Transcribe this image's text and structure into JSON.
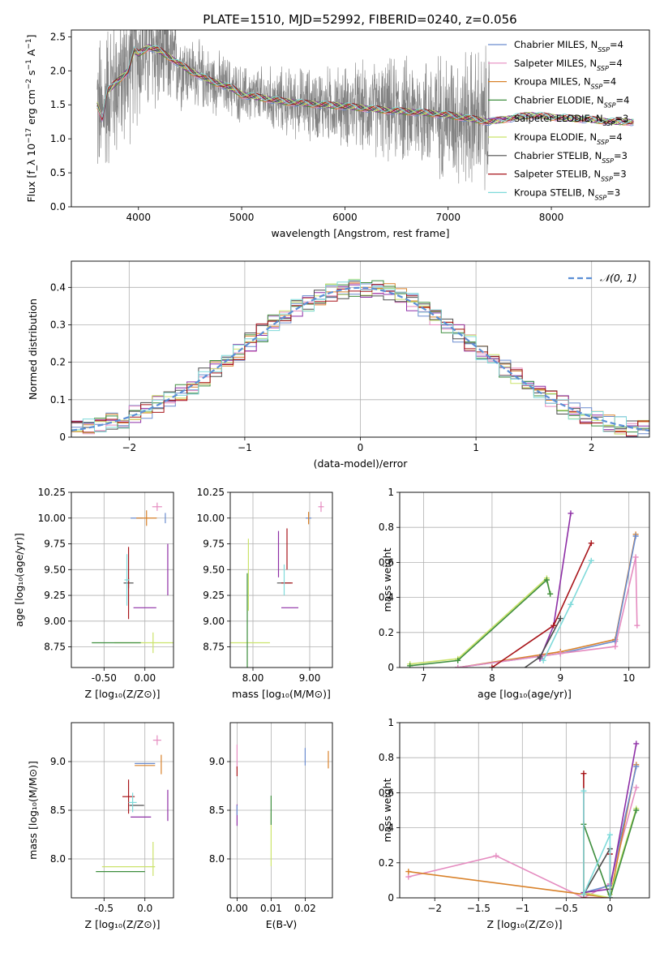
{
  "figure": {
    "title": "PLATE=1510, MJD=52992, FIBERID=0240, z=0.056"
  },
  "models": [
    {
      "name": "Chabrier MILES",
      "nssp": "4",
      "color": "#6a8ccf"
    },
    {
      "name": "Salpeter MILES",
      "nssp": "4",
      "color": "#e58cc0"
    },
    {
      "name": "Kroupa MILES",
      "nssp": "4",
      "color": "#d9822b"
    },
    {
      "name": "Chabrier ELODIE",
      "nssp": "4",
      "color": "#3e8e3e"
    },
    {
      "name": "Salpeter ELODIE",
      "nssp": "3",
      "color": "#8e2fa6"
    },
    {
      "name": "Kroupa ELODIE",
      "nssp": "4",
      "color": "#cbe36a"
    },
    {
      "name": "Chabrier STELIB",
      "nssp": "3",
      "color": "#4d4d4d"
    },
    {
      "name": "Salpeter STELIB",
      "nssp": "3",
      "color": "#a8151a"
    },
    {
      "name": "Kroupa STELIB",
      "nssp": "3",
      "color": "#7fdada"
    }
  ],
  "chart_data": [
    {
      "id": "spectrum",
      "type": "line",
      "xlabel": "wavelength [Angstrom, rest frame]",
      "ylabel": "Flux [f_λ 10^-17 erg cm^-2 s^-1 A^-1]",
      "xlim": [
        3350,
        8950
      ],
      "ylim": [
        0,
        2.6
      ],
      "xticks": [
        4000,
        5000,
        6000,
        7000,
        8000
      ],
      "yticks": [
        0.0,
        0.5,
        1.0,
        1.5,
        2.0,
        2.5
      ],
      "legend": "top-right",
      "data_color": "#808080",
      "model_continuum": {
        "x": [
          3600,
          3650,
          3700,
          3800,
          3900,
          3960,
          4000,
          4100,
          4200,
          4300,
          4400,
          4500,
          4700,
          4900,
          5000,
          5200,
          5400,
          5600,
          5800,
          6000,
          6200,
          6400,
          6600,
          6800,
          7000,
          7200,
          7400,
          7600,
          7800,
          8000,
          8200,
          8400,
          8600
        ],
        "y": [
          1.5,
          1.3,
          1.7,
          1.85,
          2.0,
          2.3,
          2.25,
          2.35,
          2.3,
          2.2,
          2.1,
          2.0,
          1.85,
          1.75,
          1.65,
          1.6,
          1.55,
          1.52,
          1.5,
          1.48,
          1.45,
          1.42,
          1.4,
          1.38,
          1.35,
          1.3,
          1.25,
          1.3,
          1.35,
          1.32,
          1.3,
          1.28,
          1.25
        ]
      },
      "data_noise_envelope": {
        "x": [
          3600,
          3900,
          4200,
          4500,
          5000,
          5500,
          6000,
          6500,
          7000,
          7400
        ],
        "amplitude": [
          1.4,
          1.3,
          1.2,
          0.6,
          0.5,
          0.6,
          0.7,
          0.9,
          1.1,
          1.3
        ]
      }
    },
    {
      "id": "residuals",
      "type": "histogram",
      "xlabel": "(data-model)/error",
      "ylabel": "Normed distribution",
      "xlim": [
        -2.5,
        2.5
      ],
      "ylim": [
        0,
        0.47
      ],
      "xticks": [
        -2,
        -1,
        0,
        1,
        2
      ],
      "yticks": [
        0.0,
        0.1,
        0.2,
        0.3,
        0.4
      ],
      "legend": "top-right",
      "reference_label": "𝒩(0, 1)",
      "reference_color": "#5b8fd6",
      "bin_edges_start": -2.5,
      "bin_width": 0.1
    },
    {
      "id": "age_vs_Z",
      "type": "errorbar",
      "xlabel": "Z [log10(Z/Z⊙)]",
      "ylabel": "age  [log10(age/yr)]",
      "xlim": [
        -0.9,
        0.35
      ],
      "ylim": [
        8.55,
        10.25
      ],
      "xticks": [
        -0.5,
        0.0
      ],
      "yticks": [
        8.75,
        9.0,
        9.25,
        9.5,
        9.75,
        10.0,
        10.25
      ],
      "points": [
        {
          "m": 5,
          "x": 0.1,
          "y": 8.79,
          "ex": 0.95,
          "ey": 0.2
        },
        {
          "m": 3,
          "x": -0.35,
          "y": 8.79,
          "ex": 0.6,
          "ey": 0.0
        },
        {
          "m": 4,
          "x": 0.0,
          "y": 9.13,
          "ex": 0.28,
          "ey": 0.0
        },
        {
          "m": 4,
          "x": 0.28,
          "y": 9.5,
          "ex": 0.0,
          "ey": 0.5
        },
        {
          "m": 6,
          "x": -0.2,
          "y": 9.37,
          "ex": 0.12,
          "ey": 0.1
        },
        {
          "m": 7,
          "x": -0.2,
          "y": 9.37,
          "ex": 0.0,
          "ey": 0.7
        },
        {
          "m": 8,
          "x": -0.22,
          "y": 9.4,
          "ex": 0.06,
          "ey": 0.5
        },
        {
          "m": 0,
          "x": -0.1,
          "y": 10.0,
          "ex": 0.15,
          "ey": 0.0
        },
        {
          "m": 2,
          "x": 0.02,
          "y": 10.0,
          "ex": 0.25,
          "ey": 0.15
        },
        {
          "m": 1,
          "x": 0.15,
          "y": 10.11,
          "ex": 0.12,
          "ey": 0.08
        },
        {
          "m": 0,
          "x": 0.25,
          "y": 10.0,
          "ex": 0.0,
          "ey": 0.1
        }
      ]
    },
    {
      "id": "age_vs_mass",
      "type": "errorbar",
      "xlabel": "mass [log10(M/M⊙)]",
      "ylabel": "",
      "xlim": [
        7.6,
        9.4
      ],
      "ylim": [
        8.55,
        10.25
      ],
      "xticks": [
        8,
        9
      ],
      "yticks": [
        8.75,
        9.0,
        9.25,
        9.5,
        9.75,
        10.0,
        10.25
      ],
      "points": [
        {
          "m": 5,
          "x": 7.9,
          "y": 8.79,
          "ex": 0.8,
          "ey": 0.0
        },
        {
          "m": 3,
          "x": 7.9,
          "y": 8.79,
          "ex": 0.0,
          "ey": 1.35
        },
        {
          "m": 5,
          "x": 7.92,
          "y": 9.45,
          "ex": 0.0,
          "ey": 0.7
        },
        {
          "m": 4,
          "x": 8.65,
          "y": 9.13,
          "ex": 0.3,
          "ey": 0.0
        },
        {
          "m": 4,
          "x": 8.45,
          "y": 9.65,
          "ex": 0.0,
          "ey": 0.45
        },
        {
          "m": 6,
          "x": 8.55,
          "y": 9.37,
          "ex": 0.25,
          "ey": 0.0
        },
        {
          "m": 7,
          "x": 8.6,
          "y": 9.37,
          "ex": 0.2,
          "ey": 0.0
        },
        {
          "m": 7,
          "x": 8.6,
          "y": 9.7,
          "ex": 0.0,
          "ey": 0.4
        },
        {
          "m": 8,
          "x": 8.55,
          "y": 9.4,
          "ex": 0.0,
          "ey": 0.3
        },
        {
          "m": 0,
          "x": 8.98,
          "y": 10.0,
          "ex": 0.1,
          "ey": 0.0
        },
        {
          "m": 2,
          "x": 8.98,
          "y": 10.0,
          "ex": 0.0,
          "ey": 0.12
        },
        {
          "m": 1,
          "x": 9.2,
          "y": 10.11,
          "ex": 0.1,
          "ey": 0.1
        }
      ]
    },
    {
      "id": "weight_vs_age",
      "type": "line",
      "xlabel": "age  [log10(age/yr)]",
      "ylabel": "mass weight",
      "xlim": [
        6.65,
        10.3
      ],
      "ylim": [
        0,
        1.0
      ],
      "xticks": [
        7,
        8,
        9,
        10
      ],
      "yticks": [
        0.0,
        0.2,
        0.4,
        0.6,
        0.8,
        1.0
      ],
      "series": [
        {
          "m": 5,
          "x": [
            6.8,
            7.5,
            8.8,
            8.85
          ],
          "y": [
            0.02,
            0.05,
            0.51,
            0.42
          ]
        },
        {
          "m": 3,
          "x": [
            6.8,
            7.5,
            8.8,
            8.85
          ],
          "y": [
            0.01,
            0.04,
            0.5,
            0.42
          ]
        },
        {
          "m": 2,
          "x": [
            7.5,
            9.0,
            9.8,
            10.1
          ],
          "y": [
            0.0,
            0.09,
            0.16,
            0.76
          ]
        },
        {
          "m": 0,
          "x": [
            7.5,
            9.0,
            9.8,
            10.1
          ],
          "y": [
            0.0,
            0.08,
            0.15,
            0.75
          ]
        },
        {
          "m": 1,
          "x": [
            7.5,
            9.0,
            9.8,
            10.1,
            10.12
          ],
          "y": [
            0.0,
            0.08,
            0.12,
            0.63,
            0.24
          ]
        },
        {
          "m": 4,
          "x": [
            8.7,
            8.9,
            9.15
          ],
          "y": [
            0.05,
            0.24,
            0.88
          ]
        },
        {
          "m": 6,
          "x": [
            8.3,
            8.7,
            9.0
          ],
          "y": [
            -0.05,
            0.06,
            0.28
          ]
        },
        {
          "m": 7,
          "x": [
            8.0,
            8.9,
            9.45
          ],
          "y": [
            0.0,
            0.24,
            0.71
          ]
        },
        {
          "m": 8,
          "x": [
            8.75,
            9.15,
            9.45
          ],
          "y": [
            0.04,
            0.36,
            0.61
          ]
        }
      ]
    },
    {
      "id": "mass_vs_Z",
      "type": "errorbar",
      "xlabel": "Z [log10(Z/Z⊙)]",
      "ylabel": "mass [log10(M/M⊙)]",
      "xlim": [
        -0.9,
        0.35
      ],
      "ylim": [
        7.6,
        9.4
      ],
      "xticks": [
        -0.5,
        0.0
      ],
      "yticks": [
        8.0,
        8.5,
        9.0
      ],
      "points": [
        {
          "m": 5,
          "x": -0.2,
          "y": 7.92,
          "ex": 0.65,
          "ey": 0.0
        },
        {
          "m": 3,
          "x": -0.3,
          "y": 7.87,
          "ex": 0.6,
          "ey": 0.0
        },
        {
          "m": 5,
          "x": 0.1,
          "y": 8.0,
          "ex": 0.0,
          "ey": 0.35
        },
        {
          "m": 4,
          "x": -0.05,
          "y": 8.43,
          "ex": 0.25,
          "ey": 0.0
        },
        {
          "m": 4,
          "x": 0.28,
          "y": 8.55,
          "ex": 0.0,
          "ey": 0.32
        },
        {
          "m": 7,
          "x": -0.2,
          "y": 8.64,
          "ex": 0.15,
          "ey": 0.0
        },
        {
          "m": 7,
          "x": -0.2,
          "y": 8.64,
          "ex": 0.0,
          "ey": 0.35
        },
        {
          "m": 6,
          "x": -0.1,
          "y": 8.55,
          "ex": 0.18,
          "ey": 0.0
        },
        {
          "m": 8,
          "x": -0.15,
          "y": 8.58,
          "ex": 0.1,
          "ey": 0.2
        },
        {
          "m": 0,
          "x": 0.0,
          "y": 8.98,
          "ex": 0.25,
          "ey": 0.0
        },
        {
          "m": 2,
          "x": 0.0,
          "y": 8.96,
          "ex": 0.25,
          "ey": 0.0
        },
        {
          "m": 2,
          "x": 0.2,
          "y": 8.97,
          "ex": 0.0,
          "ey": 0.2
        },
        {
          "m": 1,
          "x": 0.15,
          "y": 9.22,
          "ex": 0.1,
          "ey": 0.1
        }
      ]
    },
    {
      "id": "mass_vs_ebv",
      "type": "errorbar",
      "xlabel": "E(B-V)",
      "ylabel": "",
      "xlim": [
        -0.002,
        0.028
      ],
      "ylim": [
        7.6,
        9.4
      ],
      "xticks": [
        0.0,
        0.01,
        0.02
      ],
      "xtick_labels": [
        "0.00",
        "0.01",
        "0.02"
      ],
      "yticks": [
        8.0,
        8.5,
        9.0
      ],
      "points": [
        {
          "m": 1,
          "x": 0.0,
          "y": 9.05,
          "ex": 0.0,
          "ey": 0.25
        },
        {
          "m": 7,
          "x": 0.0,
          "y": 8.9,
          "ex": 0.0,
          "ey": 0.1
        },
        {
          "m": 4,
          "x": 0.0,
          "y": 8.45,
          "ex": 0.0,
          "ey": 0.22
        },
        {
          "m": 0,
          "x": 0.0,
          "y": 8.5,
          "ex": 0.0,
          "ey": 0.1
        },
        {
          "m": 5,
          "x": 0.01,
          "y": 8.2,
          "ex": 0.0,
          "ey": 0.55
        },
        {
          "m": 3,
          "x": 0.01,
          "y": 8.5,
          "ex": 0.0,
          "ey": 0.3
        },
        {
          "m": 0,
          "x": 0.02,
          "y": 9.05,
          "ex": 0.0,
          "ey": 0.18
        },
        {
          "m": 2,
          "x": 0.0268,
          "y": 9.02,
          "ex": 0.0,
          "ey": 0.18
        }
      ]
    },
    {
      "id": "weight_vs_Z",
      "type": "line",
      "xlabel": "Z [log10(Z/Z⊙)]",
      "ylabel": "mass weight",
      "xlim": [
        -2.4,
        0.45
      ],
      "ylim": [
        0,
        1.0
      ],
      "xticks": [
        -2.0,
        -1.5,
        -1.0,
        -0.5,
        0.0
      ],
      "yticks": [
        0.0,
        0.2,
        0.4,
        0.6,
        0.8,
        1.0
      ],
      "series": [
        {
          "m": 1,
          "x": [
            -2.3,
            -1.3,
            -0.3,
            0.0,
            0.3
          ],
          "y": [
            0.12,
            0.24,
            0.0,
            0.08,
            0.63
          ]
        },
        {
          "m": 2,
          "x": [
            -2.3,
            -0.3,
            0.0,
            0.3
          ],
          "y": [
            0.15,
            0.02,
            0.0,
            0.76
          ]
        },
        {
          "m": 0,
          "x": [
            -0.3,
            0.0,
            0.3
          ],
          "y": [
            0.03,
            0.07,
            0.75
          ]
        },
        {
          "m": 5,
          "x": [
            -0.3,
            -0.3,
            0.0,
            0.0,
            0.3
          ],
          "y": [
            0.42,
            0.03,
            0.0,
            0.02,
            0.51
          ]
        },
        {
          "m": 3,
          "x": [
            -0.3,
            0.0,
            0.3
          ],
          "y": [
            0.42,
            0.0,
            0.5
          ]
        },
        {
          "m": 4,
          "x": [
            -0.3,
            0.0,
            0.3
          ],
          "y": [
            0.03,
            0.05,
            0.88
          ]
        },
        {
          "m": 6,
          "x": [
            -0.3,
            0.0,
            0.0
          ],
          "y": [
            0.02,
            0.28,
            0.05
          ]
        },
        {
          "m": 7,
          "x": [
            -0.3,
            -0.3,
            0.0,
            0.0
          ],
          "y": [
            0.71,
            0.0,
            0.0,
            0.25
          ]
        },
        {
          "m": 8,
          "x": [
            -0.3,
            -0.3,
            0.0,
            0.0
          ],
          "y": [
            0.61,
            0.02,
            0.36,
            0.0
          ]
        }
      ]
    }
  ]
}
